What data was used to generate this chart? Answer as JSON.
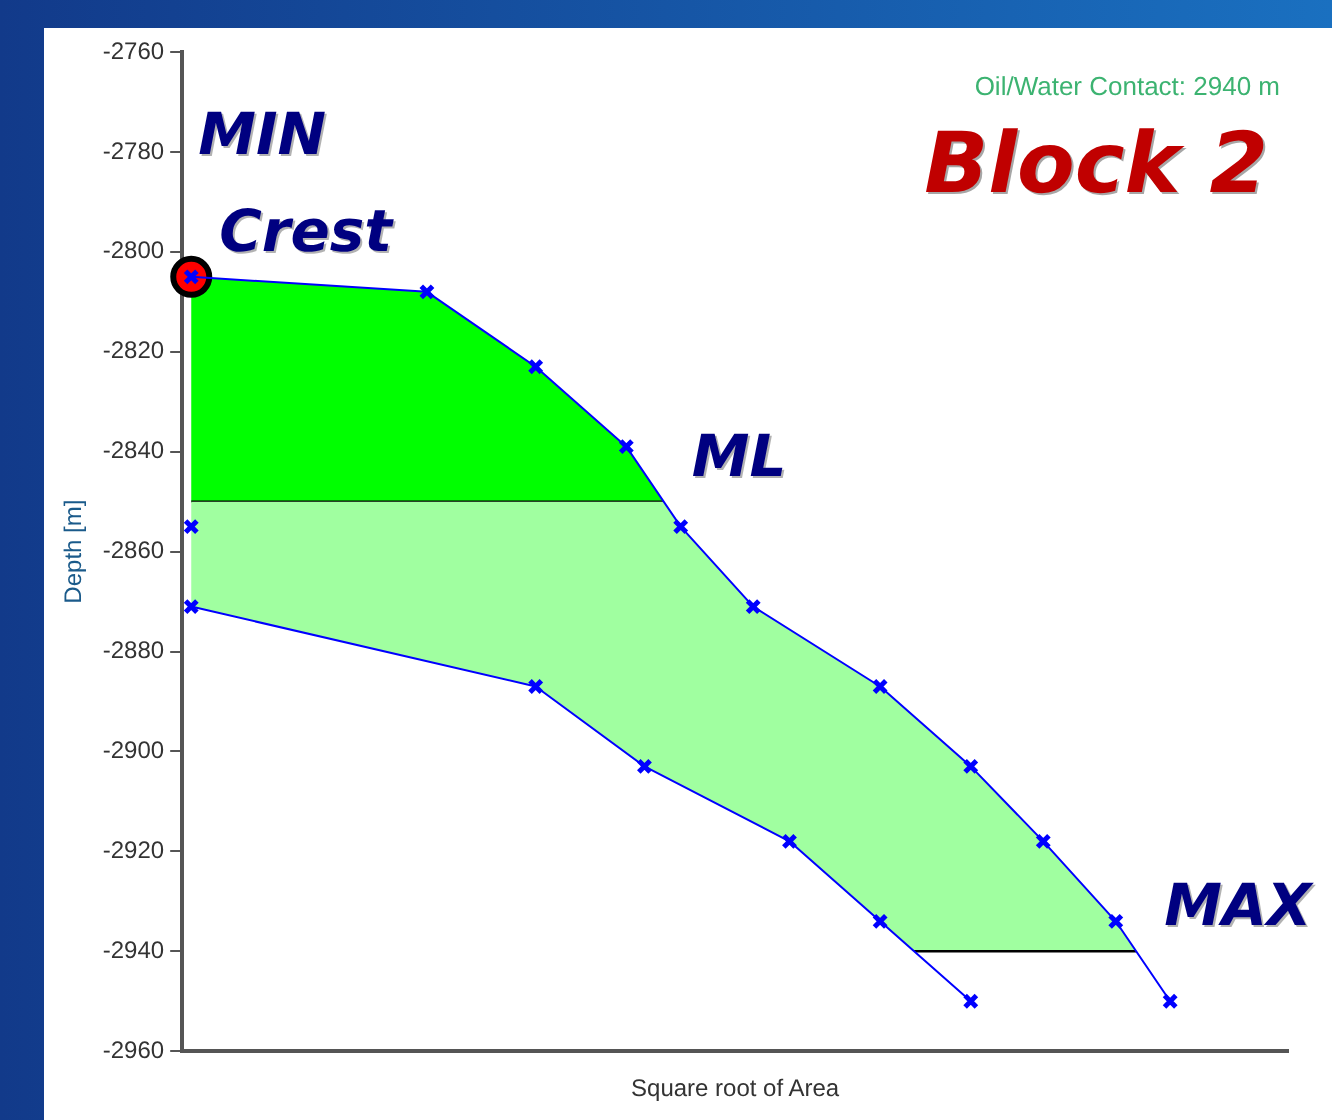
{
  "chart_data": {
    "type": "line",
    "title": "Block 2",
    "xlabel": "Square root of Area",
    "ylabel": "Depth [m]",
    "categories": [
      null,
      null,
      null,
      null,
      null,
      null,
      null,
      null,
      null,
      null,
      null,
      null,
      null,
      null,
      null,
      null,
      null,
      null,
      null,
      null,
      null,
      null,
      null,
      null,
      null,
      null,
      null,
      null,
      null,
      null,
      null,
      null,
      null,
      null,
      null,
      null,
      null,
      null,
      null,
      null,
      null,
      null,
      null,
      null,
      null,
      null,
      null,
      null,
      null,
      null,
      null,
      null,
      null,
      null,
      null,
      null,
      null,
      null,
      null,
      null,
      null
    ],
    "ylim": [
      -2960,
      -2760
    ],
    "yticks": [
      -2960,
      -2940,
      -2920,
      -2900,
      -2880,
      -2860,
      -2840,
      -2820,
      -2800,
      -2780,
      -2760
    ],
    "tick_labels": "y",
    "series": [
      {
        "color": "#0000ff",
        "marker": "cross",
        "values": [
          -2805,
          null,
          null,
          null,
          null,
          null,
          null,
          null,
          null,
          null,
          null,
          null,
          null,
          -2808,
          null,
          null,
          null,
          null,
          null,
          -2823,
          null,
          null,
          null,
          null,
          -2839,
          null,
          null,
          -2855,
          null,
          null,
          null,
          -2871,
          null,
          null,
          null,
          null,
          null,
          null,
          -2887,
          null,
          null,
          null,
          null,
          -2903,
          null,
          null,
          null,
          -2918,
          null,
          null,
          null,
          -2934,
          null,
          null,
          -2950,
          null,
          null,
          null,
          null,
          null,
          null
        ]
      },
      {
        "color": "#0000ff",
        "marker": "cross",
        "values": [
          -2871,
          null,
          null,
          null,
          null,
          null,
          null,
          null,
          null,
          null,
          null,
          null,
          null,
          null,
          null,
          null,
          null,
          null,
          null,
          -2887,
          null,
          null,
          null,
          null,
          null,
          -2903,
          null,
          null,
          null,
          null,
          null,
          null,
          null,
          -2918,
          null,
          null,
          null,
          null,
          -2934,
          null,
          null,
          null,
          null,
          -2950,
          null,
          null,
          null,
          null,
          null,
          null,
          null,
          null,
          null,
          null,
          null,
          null,
          null,
          null,
          null,
          null,
          null
        ]
      },
      {
        "type": "scatter",
        "color": "#0000ff",
        "marker": "cross",
        "values": [
          -2855,
          null,
          null,
          null,
          null,
          null,
          null,
          null,
          null,
          null,
          null,
          null,
          null,
          null,
          null,
          null,
          null,
          null,
          null,
          null,
          null,
          null,
          null,
          null,
          null,
          null,
          null,
          null,
          null,
          null,
          null,
          null,
          null,
          null,
          null,
          null,
          null,
          null,
          null,
          null,
          null,
          null,
          null,
          null,
          null,
          null,
          null,
          null,
          null,
          null,
          null,
          null,
          null,
          null,
          null,
          null,
          null,
          null,
          null,
          null,
          null
        ]
      },
      {
        "type": "scatter",
        "color": "#ff0000",
        "marker": "circle",
        "values": [
          -2805,
          null,
          null,
          null,
          null,
          null,
          null,
          null,
          null,
          null,
          null,
          null,
          null,
          null,
          null,
          null,
          null,
          null,
          null,
          null,
          null,
          null,
          null,
          null,
          null,
          null,
          null,
          null,
          null,
          null,
          null,
          null,
          null,
          null,
          null,
          null,
          null,
          null,
          null,
          null,
          null,
          null,
          null,
          null,
          null,
          null,
          null,
          null,
          null,
          null,
          null,
          null,
          null,
          null,
          null,
          null,
          null,
          null,
          null,
          null,
          null
        ]
      }
    ],
    "bands": [
      {
        "axis": "y",
        "from": -2850,
        "to": -2805,
        "color": "#00ff00"
      },
      {
        "axis": "y",
        "from": -2940,
        "to": -2850,
        "color": "#a0ffa0"
      }
    ],
    "annotations": [
      "Oil/Water Contact: 2940 m",
      "MIN",
      {
        "text": "Crest",
        "y": -2805
      },
      {
        "text": "ML",
        "y": -2850
      },
      {
        "text": "MAX",
        "y": -2940
      }
    ]
  }
}
